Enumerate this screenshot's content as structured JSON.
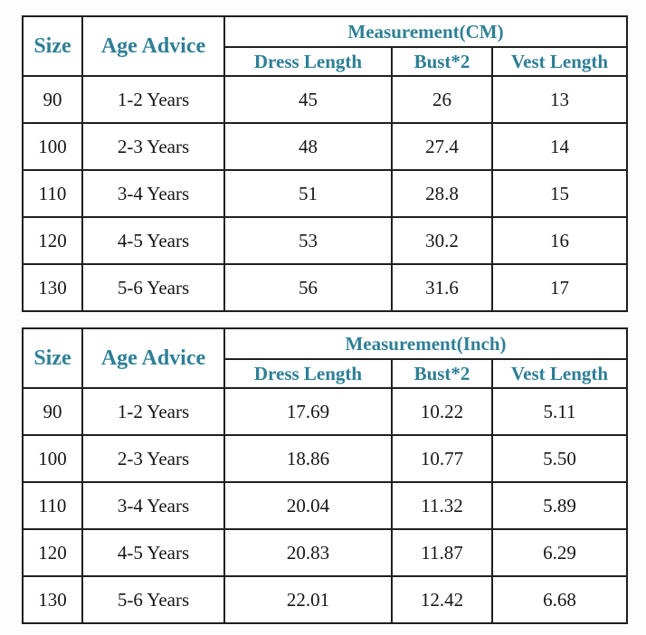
{
  "colors": {
    "header_text": "#2e7f95",
    "body_text": "#161616",
    "border": "#1e1e1e",
    "background": "#fdfdfd"
  },
  "chart_data": [
    {
      "type": "table",
      "unit": "CM",
      "corner_headers": {
        "size": "Size",
        "age": "Age Advice"
      },
      "measurement_header": "Measurement(CM)",
      "sub_headers": [
        "Dress Length",
        "Bust*2",
        "Vest Length"
      ],
      "rows": [
        [
          "90",
          "1-2 Years",
          "45",
          "26",
          "13"
        ],
        [
          "100",
          "2-3 Years",
          "48",
          "27.4",
          "14"
        ],
        [
          "110",
          "3-4 Years",
          "51",
          "28.8",
          "15"
        ],
        [
          "120",
          "4-5 Years",
          "53",
          "30.2",
          "16"
        ],
        [
          "130",
          "5-6 Years",
          "56",
          "31.6",
          "17"
        ]
      ]
    },
    {
      "type": "table",
      "unit": "Inch",
      "corner_headers": {
        "size": "Size",
        "age": "Age Advice"
      },
      "measurement_header": "Measurement(Inch)",
      "sub_headers": [
        "Dress Length",
        "Bust*2",
        "Vest Length"
      ],
      "rows": [
        [
          "90",
          "1-2 Years",
          "17.69",
          "10.22",
          "5.11"
        ],
        [
          "100",
          "2-3 Years",
          "18.86",
          "10.77",
          "5.50"
        ],
        [
          "110",
          "3-4 Years",
          "20.04",
          "11.32",
          "5.89"
        ],
        [
          "120",
          "4-5 Years",
          "20.83",
          "11.87",
          "6.29"
        ],
        [
          "130",
          "5-6 Years",
          "22.01",
          "12.42",
          "6.68"
        ]
      ]
    }
  ]
}
